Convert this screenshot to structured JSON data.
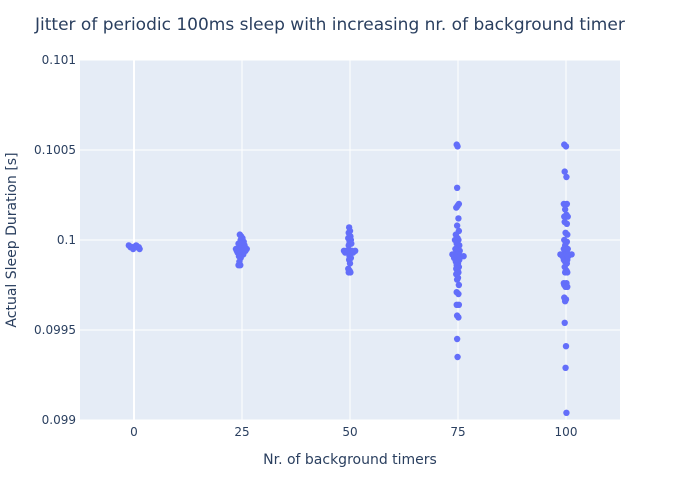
{
  "chart_data": {
    "type": "scatter",
    "title": "Jitter of periodic 100ms sleep with increasing nr. of background timer",
    "xlabel": "Nr. of background timers",
    "ylabel": "Actual Sleep Duration [s]",
    "xlim": [
      -12.5,
      112.5
    ],
    "ylim": [
      0.099,
      0.101
    ],
    "xticks": [
      0,
      25,
      50,
      75,
      100
    ],
    "xtick_labels": [
      "0",
      "25",
      "50",
      "75",
      "100"
    ],
    "yticks": [
      0.099,
      0.0995,
      0.1,
      0.1005,
      0.101
    ],
    "ytick_labels": [
      "0.099",
      "0.0995",
      "0.1",
      "0.1005",
      "0.101"
    ],
    "grid": true,
    "marker_color": "#636efa",
    "plot_bg": "#e5ecf6",
    "grid_color": "#ffffff",
    "text_color": "#2a3f5f",
    "series": [
      {
        "points": [
          [
            0,
            0.09996
          ],
          [
            0.3,
            0.09996
          ],
          [
            -0.4,
            0.09996
          ],
          [
            0.8,
            0.09996
          ],
          [
            -0.8,
            0.09996
          ],
          [
            1.1,
            0.09996
          ],
          [
            -1.2,
            0.09997
          ],
          [
            0.5,
            0.09997
          ],
          [
            -0.2,
            0.09995
          ],
          [
            1.3,
            0.09995
          ],
          [
            24.5,
            0.10003
          ],
          [
            24.8,
            0.10002
          ],
          [
            25.1,
            0.10001
          ],
          [
            24.7,
            0.1
          ],
          [
            25.4,
            0.09999
          ],
          [
            24.2,
            0.09998
          ],
          [
            24.9,
            0.09998
          ],
          [
            25.6,
            0.09997
          ],
          [
            23.6,
            0.09995
          ],
          [
            24.1,
            0.09995
          ],
          [
            24.6,
            0.09995
          ],
          [
            25.0,
            0.09995
          ],
          [
            25.5,
            0.09995
          ],
          [
            26.1,
            0.09995
          ],
          [
            23.8,
            0.09994
          ],
          [
            24.4,
            0.09994
          ],
          [
            25.2,
            0.09994
          ],
          [
            25.8,
            0.09994
          ],
          [
            24.0,
            0.09993
          ],
          [
            24.8,
            0.09993
          ],
          [
            25.3,
            0.09992
          ],
          [
            24.3,
            0.09991
          ],
          [
            24.7,
            0.0999
          ],
          [
            24.4,
            0.09988
          ],
          [
            24.2,
            0.09986
          ],
          [
            24.6,
            0.09986
          ],
          [
            49.8,
            0.10007
          ],
          [
            50.0,
            0.10005
          ],
          [
            49.7,
            0.10004
          ],
          [
            50.1,
            0.10002
          ],
          [
            49.6,
            0.10001
          ],
          [
            50.2,
            0.1
          ],
          [
            49.9,
            0.09999
          ],
          [
            50.3,
            0.09998
          ],
          [
            49.7,
            0.09997
          ],
          [
            48.6,
            0.09994
          ],
          [
            49.2,
            0.09994
          ],
          [
            49.8,
            0.09994
          ],
          [
            50.4,
            0.09994
          ],
          [
            51.2,
            0.09994
          ],
          [
            48.9,
            0.09993
          ],
          [
            49.5,
            0.09993
          ],
          [
            50.1,
            0.09993
          ],
          [
            50.7,
            0.09993
          ],
          [
            49.9,
            0.09991
          ],
          [
            50.2,
            0.0999
          ],
          [
            49.8,
            0.09989
          ],
          [
            50.0,
            0.09987
          ],
          [
            49.6,
            0.09984
          ],
          [
            49.9,
            0.09983
          ],
          [
            50.1,
            0.09982
          ],
          [
            49.7,
            0.09982
          ],
          [
            74.7,
            0.10053
          ],
          [
            74.9,
            0.10052
          ],
          [
            74.8,
            0.10029
          ],
          [
            75.2,
            0.1002
          ],
          [
            74.9,
            0.10019
          ],
          [
            74.6,
            0.10018
          ],
          [
            75.1,
            0.10012
          ],
          [
            74.8,
            0.10008
          ],
          [
            75.2,
            0.10005
          ],
          [
            74.5,
            0.10003
          ],
          [
            74.9,
            0.10001
          ],
          [
            74.3,
            0.1
          ],
          [
            75.1,
            0.1
          ],
          [
            74.7,
            0.09998
          ],
          [
            75.3,
            0.09997
          ],
          [
            74.4,
            0.09995
          ],
          [
            74.9,
            0.09994
          ],
          [
            75.4,
            0.09994
          ],
          [
            73.7,
            0.09992
          ],
          [
            74.2,
            0.09992
          ],
          [
            74.6,
            0.09992
          ],
          [
            75.0,
            0.09992
          ],
          [
            75.5,
            0.09991
          ],
          [
            76.3,
            0.09991
          ],
          [
            74.1,
            0.0999
          ],
          [
            74.8,
            0.0999
          ],
          [
            75.3,
            0.09989
          ],
          [
            74.5,
            0.09988
          ],
          [
            75.0,
            0.09987
          ],
          [
            74.7,
            0.09986
          ],
          [
            75.2,
            0.09985
          ],
          [
            74.6,
            0.09984
          ],
          [
            74.9,
            0.09983
          ],
          [
            75.1,
            0.09982
          ],
          [
            74.6,
            0.09981
          ],
          [
            75.0,
            0.09979
          ],
          [
            74.8,
            0.09978
          ],
          [
            75.2,
            0.09975
          ],
          [
            74.7,
            0.09971
          ],
          [
            75.1,
            0.0997
          ],
          [
            74.7,
            0.09964
          ],
          [
            75.2,
            0.09964
          ],
          [
            74.8,
            0.09958
          ],
          [
            75.1,
            0.09957
          ],
          [
            74.8,
            0.09945
          ],
          [
            74.9,
            0.09935
          ],
          [
            99.6,
            0.10053
          ],
          [
            100.0,
            0.10052
          ],
          [
            99.7,
            0.10038
          ],
          [
            100.1,
            0.10035
          ],
          [
            99.5,
            0.1002
          ],
          [
            100.2,
            0.1002
          ],
          [
            99.8,
            0.10017
          ],
          [
            100.1,
            0.10014
          ],
          [
            99.6,
            0.10013
          ],
          [
            100.4,
            0.10013
          ],
          [
            99.7,
            0.1001
          ],
          [
            100.2,
            0.10009
          ],
          [
            99.9,
            0.10004
          ],
          [
            100.3,
            0.10003
          ],
          [
            99.6,
            0.1
          ],
          [
            100.2,
            0.09999
          ],
          [
            99.8,
            0.09997
          ],
          [
            99.5,
            0.09995
          ],
          [
            100.4,
            0.09995
          ],
          [
            98.7,
            0.09992
          ],
          [
            99.3,
            0.09992
          ],
          [
            99.7,
            0.09992
          ],
          [
            100.1,
            0.09992
          ],
          [
            100.6,
            0.09992
          ],
          [
            101.3,
            0.09992
          ],
          [
            99.2,
            0.09991
          ],
          [
            99.9,
            0.09991
          ],
          [
            100.5,
            0.09991
          ],
          [
            99.5,
            0.09989
          ],
          [
            100.3,
            0.09989
          ],
          [
            99.8,
            0.09988
          ],
          [
            100.2,
            0.09987
          ],
          [
            99.7,
            0.09985
          ],
          [
            100.1,
            0.09983
          ],
          [
            99.8,
            0.09982
          ],
          [
            100.3,
            0.09982
          ],
          [
            99.5,
            0.09976
          ],
          [
            100.1,
            0.09976
          ],
          [
            99.6,
            0.09975
          ],
          [
            99.9,
            0.09974
          ],
          [
            100.3,
            0.09974
          ],
          [
            99.6,
            0.09968
          ],
          [
            100.0,
            0.09967
          ],
          [
            99.8,
            0.09966
          ],
          [
            99.7,
            0.09954
          ],
          [
            100.0,
            0.09941
          ],
          [
            99.9,
            0.09929
          ],
          [
            100.1,
            0.09904
          ]
        ]
      }
    ]
  }
}
